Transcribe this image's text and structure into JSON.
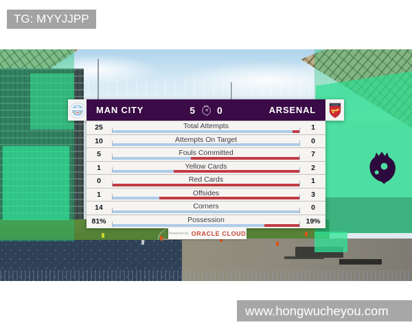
{
  "watermarks": {
    "top_left": "TG: MYYJJPP",
    "bottom_right": "www.hongwucheyou.com"
  },
  "scoreboard": {
    "home_team": "MAN CITY",
    "away_team": "ARSENAL",
    "home_score": "5",
    "away_score": "0",
    "stats": [
      {
        "label": "Total Attempts",
        "home": "25",
        "away": "1",
        "home_pct": 96
      },
      {
        "label": "Attempts On Target",
        "home": "10",
        "away": "0",
        "home_pct": 100
      },
      {
        "label": "Fouls Committed",
        "home": "5",
        "away": "7",
        "home_pct": 42
      },
      {
        "label": "Yellow Cards",
        "home": "1",
        "away": "2",
        "home_pct": 33
      },
      {
        "label": "Red Cards",
        "home": "0",
        "away": "1",
        "home_pct": 0
      },
      {
        "label": "Offsides",
        "home": "1",
        "away": "3",
        "home_pct": 25
      },
      {
        "label": "Corners",
        "home": "14",
        "away": "0",
        "home_pct": 100
      },
      {
        "label": "Possession",
        "home": "81%",
        "away": "19%",
        "home_pct": 81
      }
    ]
  },
  "sponsor": {
    "prefix": "Powered by",
    "name": "ORACLE CLOUD"
  },
  "icons": {
    "home_crest": "man-city-crest",
    "away_crest": "arsenal-crest",
    "league_logo": "premier-league-lion"
  },
  "colors": {
    "pl_purple": "#3a0b46",
    "home_bar": "#aecbe8",
    "away_bar": "#c23b43",
    "overlay_green": "#2ee59b",
    "pitch_green": "#55813b",
    "oracle_red": "#c74634",
    "watermark_gray": "#a7a7a7",
    "lion_purple": "#2d0a3d"
  },
  "chart_data": {
    "type": "bar",
    "title": "MAN CITY 5 - 0 ARSENAL",
    "orientation": "horizontal-paired",
    "categories": [
      "Total Attempts",
      "Attempts On Target",
      "Fouls Committed",
      "Yellow Cards",
      "Red Cards",
      "Offsides",
      "Corners",
      "Possession (%)"
    ],
    "series": [
      {
        "name": "MAN CITY",
        "color": "#aecbe8",
        "values": [
          25,
          10,
          5,
          1,
          0,
          1,
          14,
          81
        ]
      },
      {
        "name": "ARSENAL",
        "color": "#c23b43",
        "values": [
          1,
          0,
          7,
          2,
          1,
          3,
          0,
          19
        ]
      }
    ],
    "legend_position": "header",
    "annotations": [
      "Powered by ORACLE CLOUD"
    ]
  }
}
